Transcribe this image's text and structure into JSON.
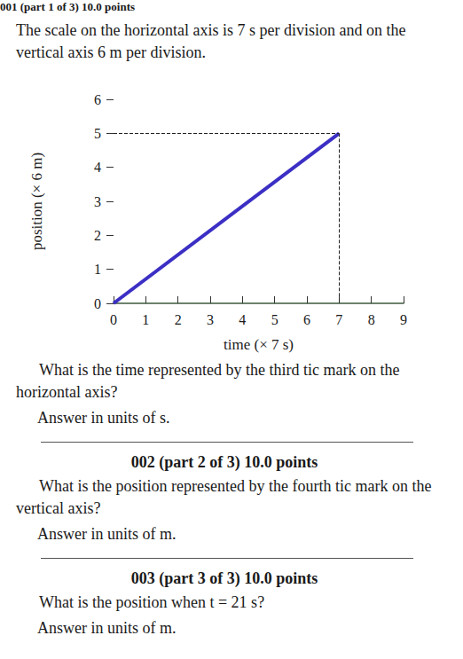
{
  "header": "001 (part 1 of 3) 10.0 points",
  "intro": "The scale on the horizontal axis is 7 s per division and on the vertical axis 6 m per division.",
  "chart_data": {
    "type": "line",
    "x_label": "time (× 7 s)",
    "y_label": "position (× 6 m)",
    "x": [
      0,
      7
    ],
    "values": [
      0,
      5
    ],
    "color": "#3b2fc4",
    "xlim": [
      0,
      9
    ],
    "xticks": [
      0,
      1,
      2,
      3,
      4,
      5,
      6,
      7,
      8,
      9
    ],
    "ylim": [
      0,
      6
    ],
    "yticks": [
      0,
      1,
      2,
      3,
      4,
      5,
      6
    ],
    "dashed_guides": {
      "x": 7,
      "y": 5
    },
    "grid": false
  },
  "questions": [
    {
      "text": "What is the time represented by the third tic mark on the horizontal axis?",
      "answer": "Answer in units of  s."
    },
    {
      "heading": "002 (part 2 of 3) 10.0 points",
      "text": "What is the position represented by the fourth tic mark on the vertical axis?",
      "answer": "Answer in units of  m."
    },
    {
      "heading": "003 (part 3 of 3) 10.0 points",
      "text": "What is the position when t = 21 s?",
      "answer": "Answer in units of  m."
    }
  ]
}
